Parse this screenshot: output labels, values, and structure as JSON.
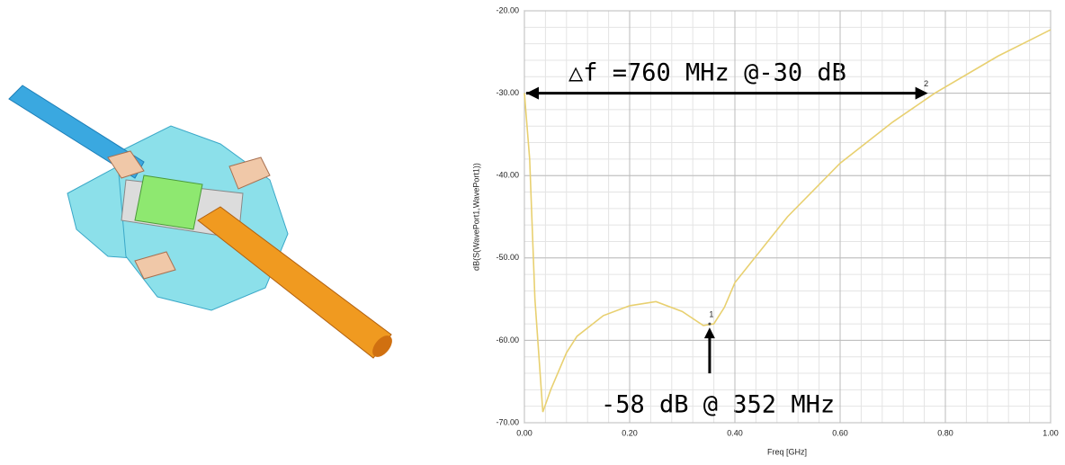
{
  "chart_data": {
    "type": "line",
    "xlabel": "Freq [GHz]",
    "ylabel": "dB(S(WavePort1,WavePort1))",
    "x": [
      0.0,
      0.01,
      0.02,
      0.035,
      0.05,
      0.08,
      0.1,
      0.15,
      0.2,
      0.25,
      0.3,
      0.34,
      0.36,
      0.38,
      0.4,
      0.5,
      0.6,
      0.7,
      0.78,
      0.9,
      1.0
    ],
    "values": [
      -30,
      -38,
      -55,
      -68.7,
      -66,
      -61.5,
      -59.5,
      -57,
      -55.8,
      -55.3,
      -56.5,
      -58.2,
      -58,
      -56,
      -53,
      -45,
      -38.5,
      -33.5,
      -30,
      -25.5,
      -22.3
    ],
    "color": "#e8d070",
    "xlim": [
      0,
      1
    ],
    "ylim": [
      -70,
      -20
    ],
    "xticks": [
      {
        "value": 0,
        "label": "0.00"
      },
      {
        "value": 0.2,
        "label": "0.20"
      },
      {
        "value": 0.4,
        "label": "0.40"
      },
      {
        "value": 0.6,
        "label": "0.60"
      },
      {
        "value": 0.8,
        "label": "0.80"
      },
      {
        "value": 1,
        "label": "1.00"
      }
    ],
    "yticks": [
      {
        "value": -70,
        "label": "-70.00"
      },
      {
        "value": -60,
        "label": "-60.00"
      },
      {
        "value": -50,
        "label": "-50.00"
      },
      {
        "value": -40,
        "label": "-40.00"
      },
      {
        "value": -30,
        "label": "-30.00"
      },
      {
        "value": -20,
        "label": "-20.00"
      }
    ],
    "grid": true,
    "markers": [
      {
        "label": "1",
        "x": 0.352,
        "y": -58
      },
      {
        "label": "2",
        "x": 0.76,
        "y": -30
      }
    ],
    "annotations": [
      "△f =760 MHz @-30 dB",
      "-58 dB @ 352 MHz"
    ]
  }
}
